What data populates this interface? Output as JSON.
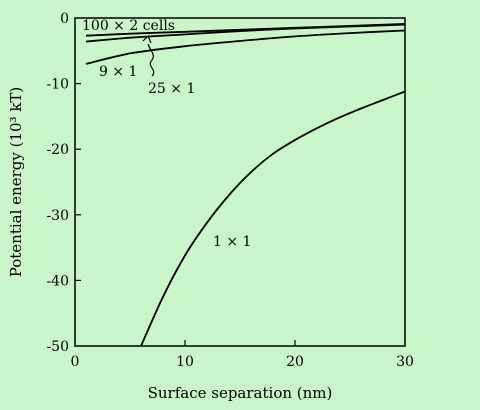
{
  "colors": {
    "background": "#c9f5c9",
    "ink": "#000000"
  },
  "chart_data": {
    "type": "line",
    "title": "",
    "xlabel": "Surface separation (nm)",
    "ylabel": "Potential energy (10³ kT)",
    "xlim": [
      0,
      30
    ],
    "ylim": [
      -50,
      0
    ],
    "xticks": [
      0,
      10,
      20,
      30
    ],
    "yticks": [
      0,
      -10,
      -20,
      -30,
      -40,
      -50
    ],
    "xtick_labels": [
      "0",
      "10",
      "20",
      "30"
    ],
    "ytick_labels": [
      "0",
      "-10",
      "-20",
      "-30",
      "-40",
      "-50"
    ],
    "grid": false,
    "legend": "none",
    "series": [
      {
        "name": "100 × 2 cells",
        "x": [
          1,
          5,
          10,
          15,
          20,
          25,
          30
        ],
        "y": [
          -2.7,
          -2.4,
          -2.1,
          -1.8,
          -1.5,
          -1.2,
          -0.9
        ]
      },
      {
        "name": "25 × 1",
        "x": [
          1,
          5,
          10,
          15,
          20,
          25,
          30
        ],
        "y": [
          -3.6,
          -3.0,
          -2.5,
          -2.0,
          -1.6,
          -1.3,
          -1.0
        ]
      },
      {
        "name": "9 × 1",
        "x": [
          1,
          5,
          10,
          15,
          20,
          25,
          30
        ],
        "y": [
          -7.0,
          -5.4,
          -4.3,
          -3.5,
          -2.8,
          -2.3,
          -1.9
        ]
      },
      {
        "name": "1 × 1",
        "x": [
          6,
          8,
          10,
          12,
          14,
          16,
          18,
          20,
          22,
          24,
          26,
          28,
          30
        ],
        "y": [
          -50,
          -42.5,
          -36.2,
          -31.2,
          -27.0,
          -23.5,
          -20.7,
          -18.6,
          -16.8,
          -15.2,
          -13.8,
          -12.5,
          -11.2
        ]
      }
    ]
  }
}
